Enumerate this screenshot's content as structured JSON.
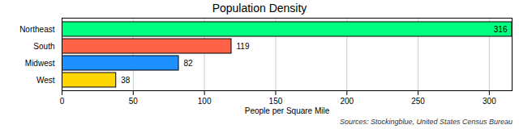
{
  "chart_data": {
    "type": "bar",
    "orientation": "horizontal",
    "title": "Population Density",
    "categories": [
      "Northeast",
      "South",
      "Midwest",
      "West"
    ],
    "values": [
      316,
      119,
      82,
      38
    ],
    "colors": [
      "#00ff80",
      "#ff6347",
      "#1e90ff",
      "#ffd700"
    ],
    "xlabel": "People per Square Mile",
    "xlim": [
      0,
      316
    ],
    "xticks": [
      0,
      50,
      100,
      150,
      200,
      250,
      300
    ],
    "grid": true,
    "data_labels": true,
    "caption": "Sources: Stockingblue, United States Census Bureau"
  }
}
